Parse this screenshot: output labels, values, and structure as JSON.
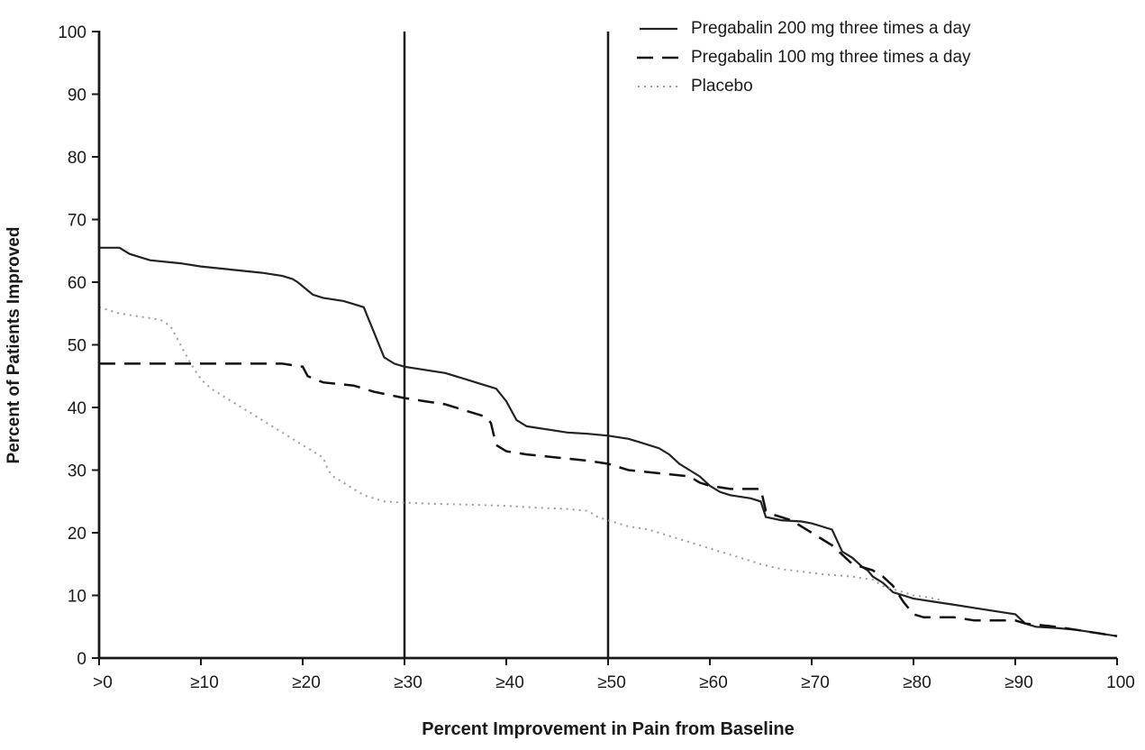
{
  "chart_data": {
    "type": "line",
    "title": "",
    "xlabel": "Percent Improvement in Pain from Baseline",
    "ylabel": "Percent of Patients Improved",
    "xlim": [
      0,
      100
    ],
    "ylim": [
      0,
      100
    ],
    "grid": false,
    "legend_position": "top-right",
    "axis_color": "#1a1a1a",
    "reference_lines_x": [
      30,
      50
    ],
    "x_ticks": [
      0,
      10,
      20,
      30,
      40,
      50,
      60,
      70,
      80,
      90,
      100
    ],
    "x_tick_labels": [
      ">0",
      "≥10",
      "≥20",
      "≥30",
      "≥40",
      "≥50",
      "≥60",
      "≥70",
      "≥80",
      "≥90",
      "100"
    ],
    "y_ticks": [
      0,
      10,
      20,
      30,
      40,
      50,
      60,
      70,
      80,
      90,
      100
    ],
    "y_tick_labels": [
      "0",
      "10",
      "20",
      "30",
      "40",
      "50",
      "60",
      "70",
      "80",
      "90",
      "100"
    ],
    "series": [
      {
        "name": "Pregabalin 200 mg three times a day",
        "style": "solid",
        "dash": "none",
        "color": "#222222",
        "width": 2.2,
        "points": [
          [
            0,
            65.5
          ],
          [
            2,
            65.5
          ],
          [
            3,
            64.5
          ],
          [
            5,
            63.5
          ],
          [
            8,
            63
          ],
          [
            10,
            62.5
          ],
          [
            13,
            62
          ],
          [
            16,
            61.5
          ],
          [
            18,
            61
          ],
          [
            19,
            60.5
          ],
          [
            19.5,
            60
          ],
          [
            21,
            58
          ],
          [
            22,
            57.5
          ],
          [
            24,
            57
          ],
          [
            25,
            56.5
          ],
          [
            26,
            56
          ],
          [
            26.5,
            54
          ],
          [
            27,
            52
          ],
          [
            28,
            48
          ],
          [
            29,
            47
          ],
          [
            30,
            46.5
          ],
          [
            32,
            46
          ],
          [
            34,
            45.5
          ],
          [
            36,
            44.5
          ],
          [
            38,
            43.5
          ],
          [
            39,
            43
          ],
          [
            40,
            41
          ],
          [
            41,
            38
          ],
          [
            42,
            37
          ],
          [
            44,
            36.5
          ],
          [
            46,
            36
          ],
          [
            48,
            35.8
          ],
          [
            50,
            35.5
          ],
          [
            52,
            35
          ],
          [
            53,
            34.5
          ],
          [
            55,
            33.5
          ],
          [
            56,
            32.5
          ],
          [
            57,
            31
          ],
          [
            58,
            30
          ],
          [
            59,
            29
          ],
          [
            60,
            27.5
          ],
          [
            61,
            26.5
          ],
          [
            62,
            26
          ],
          [
            64,
            25.5
          ],
          [
            65,
            25
          ],
          [
            65.5,
            22.5
          ],
          [
            67,
            22
          ],
          [
            69,
            21.8
          ],
          [
            70,
            21.5
          ],
          [
            71,
            21
          ],
          [
            72,
            20.5
          ],
          [
            73,
            17
          ],
          [
            74,
            16
          ],
          [
            75,
            14.5
          ],
          [
            75.5,
            14
          ],
          [
            76,
            13
          ],
          [
            77,
            12
          ],
          [
            78,
            10.5
          ],
          [
            79,
            10
          ],
          [
            80,
            9.5
          ],
          [
            82,
            9
          ],
          [
            84,
            8.5
          ],
          [
            86,
            8
          ],
          [
            88,
            7.5
          ],
          [
            90,
            7
          ],
          [
            91,
            5.5
          ],
          [
            92,
            5
          ],
          [
            94,
            4.8
          ],
          [
            96,
            4.5
          ],
          [
            98,
            4
          ],
          [
            100,
            3.5
          ]
        ]
      },
      {
        "name": "Pregabalin 100 mg three times a day",
        "style": "dashed",
        "dash": "18 10",
        "color": "#111111",
        "width": 2.5,
        "points": [
          [
            0,
            47
          ],
          [
            18,
            47
          ],
          [
            20,
            46.5
          ],
          [
            20.5,
            45
          ],
          [
            22,
            44
          ],
          [
            25,
            43.5
          ],
          [
            27,
            42.5
          ],
          [
            30,
            41.5
          ],
          [
            32,
            41
          ],
          [
            34,
            40.5
          ],
          [
            36,
            39.5
          ],
          [
            37,
            39
          ],
          [
            38,
            38.5
          ],
          [
            38.5,
            37.5
          ],
          [
            39,
            34
          ],
          [
            40,
            33
          ],
          [
            42,
            32.5
          ],
          [
            45,
            32
          ],
          [
            48,
            31.5
          ],
          [
            50,
            31
          ],
          [
            52,
            30
          ],
          [
            55,
            29.5
          ],
          [
            58,
            29
          ],
          [
            59,
            28
          ],
          [
            60,
            27.5
          ],
          [
            62,
            27
          ],
          [
            65,
            27
          ],
          [
            65.5,
            23.5
          ],
          [
            66,
            23
          ],
          [
            68,
            22
          ],
          [
            70,
            20
          ],
          [
            71,
            19
          ],
          [
            72,
            18
          ],
          [
            73,
            16.5
          ],
          [
            74,
            15
          ],
          [
            75,
            14.5
          ],
          [
            76,
            14
          ],
          [
            77,
            13
          ],
          [
            78,
            11.5
          ],
          [
            79,
            9
          ],
          [
            80,
            7
          ],
          [
            81,
            6.5
          ],
          [
            84,
            6.5
          ],
          [
            86,
            6
          ],
          [
            90,
            6
          ],
          [
            91,
            5.5
          ],
          [
            94,
            5
          ],
          [
            96,
            4.5
          ],
          [
            98,
            4
          ],
          [
            100,
            3.5
          ]
        ]
      },
      {
        "name": "Placebo",
        "style": "dotted",
        "dash": "2 5",
        "color": "#9b9b9b",
        "width": 2,
        "points": [
          [
            0,
            56
          ],
          [
            1,
            55.5
          ],
          [
            2,
            55
          ],
          [
            4,
            54.5
          ],
          [
            6,
            54
          ],
          [
            7,
            53
          ],
          [
            8,
            50
          ],
          [
            9,
            47
          ],
          [
            10,
            44.5
          ],
          [
            11,
            43
          ],
          [
            12,
            42
          ],
          [
            13,
            41
          ],
          [
            14,
            40
          ],
          [
            15,
            39
          ],
          [
            16,
            38
          ],
          [
            17,
            37
          ],
          [
            18,
            36
          ],
          [
            19,
            35
          ],
          [
            20,
            34
          ],
          [
            21,
            33
          ],
          [
            22,
            32
          ],
          [
            22.5,
            30
          ],
          [
            23,
            29
          ],
          [
            24,
            28
          ],
          [
            25,
            27
          ],
          [
            26,
            26
          ],
          [
            27,
            25.5
          ],
          [
            28,
            25
          ],
          [
            30,
            24.8
          ],
          [
            33,
            24.6
          ],
          [
            36,
            24.5
          ],
          [
            40,
            24.3
          ],
          [
            43,
            24
          ],
          [
            46,
            23.8
          ],
          [
            48,
            23.5
          ],
          [
            49,
            22.5
          ],
          [
            50,
            22
          ],
          [
            51,
            21.5
          ],
          [
            52,
            21
          ],
          [
            54,
            20.5
          ],
          [
            55,
            20
          ],
          [
            57,
            19
          ],
          [
            58,
            18.5
          ],
          [
            60,
            17.5
          ],
          [
            62,
            16.5
          ],
          [
            64,
            15.5
          ],
          [
            65,
            15
          ],
          [
            67,
            14.2
          ],
          [
            69,
            13.8
          ],
          [
            71,
            13.4
          ],
          [
            74,
            13
          ],
          [
            76,
            12.5
          ],
          [
            77,
            11.5
          ],
          [
            78,
            11
          ],
          [
            80,
            10
          ],
          [
            81,
            9.8
          ],
          [
            83,
            9.2
          ]
        ]
      }
    ]
  }
}
